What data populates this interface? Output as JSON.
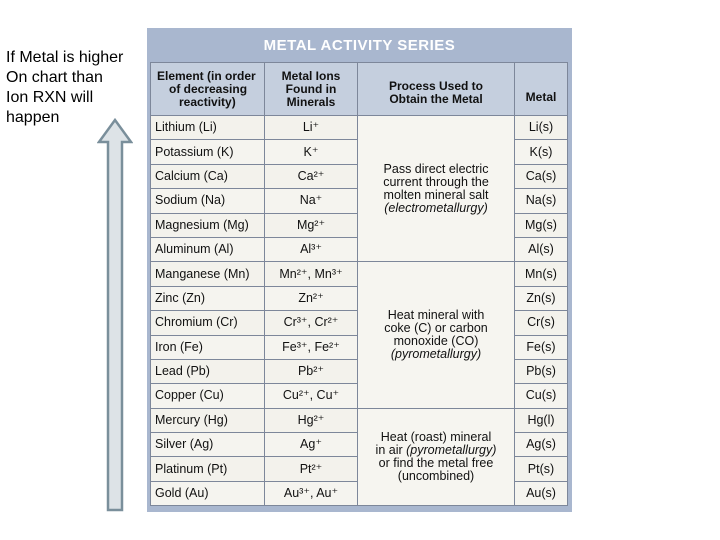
{
  "note": {
    "lines": [
      "If Metal is higher",
      "On chart than",
      "Ion RXN will",
      "happen"
    ]
  },
  "colors": {
    "panel": "#a9b7cf",
    "header": "#c5cfde",
    "arrow_fill": "#dde3e7",
    "arrow_stroke": "#7a8f9b"
  },
  "table": {
    "title": "METAL ACTIVITY SERIES",
    "headers": {
      "element": [
        "Element (in order",
        "of decreasing",
        "reactivity)"
      ],
      "ions": [
        "Metal Ions",
        "Found in",
        "Minerals"
      ],
      "process": [
        "Process Used to",
        "Obtain the Metal"
      ],
      "metal": [
        "Metal"
      ]
    },
    "rows": [
      {
        "element": "Lithium (Li)",
        "ions": "Li⁺",
        "metal": "Li(s)"
      },
      {
        "element": "Potassium (K)",
        "ions": "K⁺",
        "metal": "K(s)"
      },
      {
        "element": "Calcium (Ca)",
        "ions": "Ca²⁺",
        "metal": "Ca(s)"
      },
      {
        "element": "Sodium (Na)",
        "ions": "Na⁺",
        "metal": "Na(s)"
      },
      {
        "element": "Magnesium (Mg)",
        "ions": "Mg²⁺",
        "metal": "Mg(s)"
      },
      {
        "element": "Aluminum (Al)",
        "ions": "Al³⁺",
        "metal": "Al(s)"
      },
      {
        "element": "Manganese (Mn)",
        "ions": "Mn²⁺, Mn³⁺",
        "metal": "Mn(s)"
      },
      {
        "element": "Zinc (Zn)",
        "ions": "Zn²⁺",
        "metal": "Zn(s)"
      },
      {
        "element": "Chromium (Cr)",
        "ions": "Cr³⁺, Cr²⁺",
        "metal": "Cr(s)"
      },
      {
        "element": "Iron (Fe)",
        "ions": "Fe³⁺, Fe²⁺",
        "metal": "Fe(s)"
      },
      {
        "element": "Lead (Pb)",
        "ions": "Pb²⁺",
        "metal": "Pb(s)"
      },
      {
        "element": "Copper (Cu)",
        "ions": "Cu²⁺, Cu⁺",
        "metal": "Cu(s)"
      },
      {
        "element": "Mercury (Hg)",
        "ions": "Hg²⁺",
        "metal": "Hg(l)"
      },
      {
        "element": "Silver (Ag)",
        "ions": "Ag⁺",
        "metal": "Ag(s)"
      },
      {
        "element": "Platinum (Pt)",
        "ions": "Pt²⁺",
        "metal": "Pt(s)"
      },
      {
        "element": "Gold (Au)",
        "ions": "Au³⁺, Au⁺",
        "metal": "Au(s)"
      }
    ],
    "processes": [
      {
        "lines": [
          "Pass direct electric",
          "current through the",
          "molten mineral salt"
        ],
        "italic": "(electrometallurgy)"
      },
      {
        "lines": [
          "Heat mineral with",
          "coke (C) or carbon",
          "monoxide (CO)"
        ],
        "italic": "(pyrometallurgy)"
      },
      {
        "lines": [
          "Heat (roast) mineral",
          "in air"
        ],
        "italic": "(pyrometallurgy)",
        "after": [
          "or find the metal free",
          "(uncombined)"
        ]
      }
    ]
  }
}
